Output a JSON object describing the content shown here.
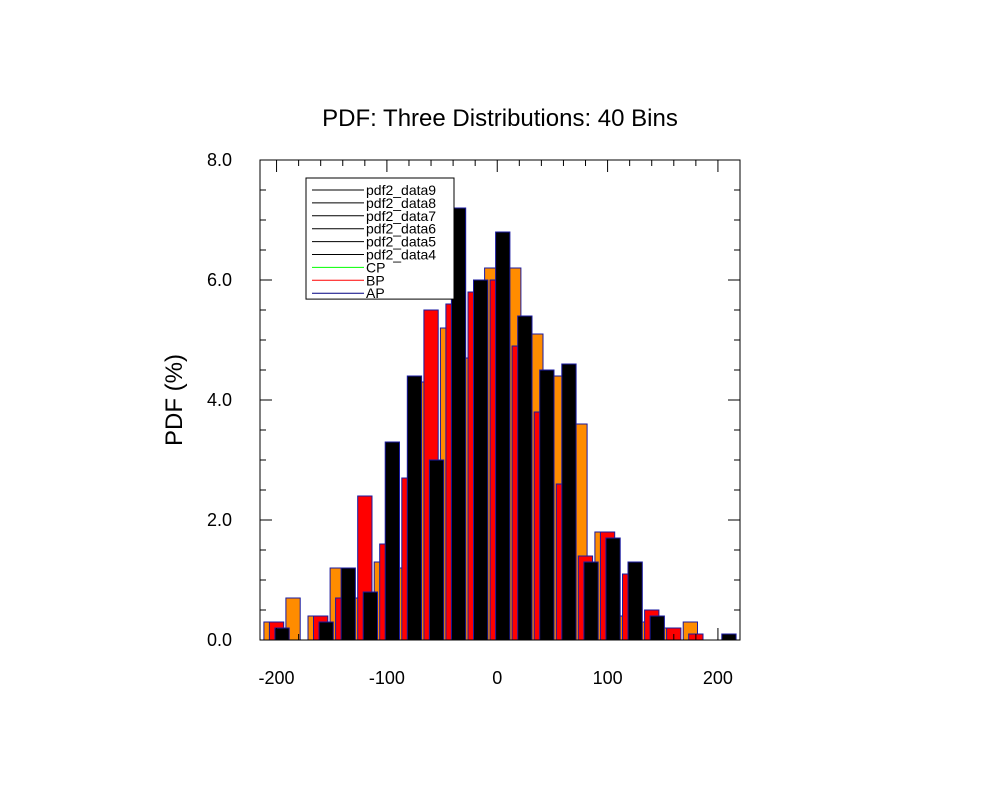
{
  "chart_data": {
    "type": "bar",
    "title": "PDF: Three Distributions: 40 Bins",
    "xlabel": "",
    "ylabel": "PDF (%)",
    "xlim": [
      -215,
      220
    ],
    "ylim": [
      0,
      8
    ],
    "x_ticks": [
      -200,
      -100,
      0,
      100,
      200
    ],
    "x_tick_labels": [
      "-200",
      "-100",
      "0",
      "100",
      "200"
    ],
    "y_ticks": [
      0,
      2,
      4,
      6,
      8
    ],
    "y_tick_labels": [
      "0.0",
      "2.0",
      "4.0",
      "6.0",
      "8.0"
    ],
    "grid": false,
    "legend_position": "top-left",
    "legend": [
      {
        "label": "pdf2_data9",
        "color": "#000000"
      },
      {
        "label": "pdf2_data8",
        "color": "#000000"
      },
      {
        "label": "pdf2_data7",
        "color": "#000000"
      },
      {
        "label": "pdf2_data6",
        "color": "#000000"
      },
      {
        "label": "pdf2_data5",
        "color": "#000000"
      },
      {
        "label": "pdf2_data4",
        "color": "#000000"
      },
      {
        "label": "CP",
        "color": "#00ff00"
      },
      {
        "label": "BP",
        "color": "#ff0000"
      },
      {
        "label": "AP",
        "color": "#000080"
      }
    ],
    "series": [
      {
        "name": "",
        "color": "#ff8c00",
        "x": [
          -205,
          -185,
          -165,
          -145,
          -125,
          -105,
          -85,
          -65,
          -45,
          -25,
          -5,
          15,
          35,
          55,
          75,
          95,
          115,
          135,
          155,
          175,
          195
        ],
        "values": [
          0.3,
          0.7,
          0.4,
          1.2,
          0.7,
          1.3,
          1.2,
          4.3,
          5.2,
          4.7,
          6.2,
          6.2,
          5.1,
          4.4,
          3.6,
          1.8,
          0.4,
          0.3,
          0.2,
          0.3,
          0.0
        ]
      },
      {
        "name": "",
        "color": "#ff0000",
        "x": [
          -200,
          -180,
          -160,
          -140,
          -120,
          -100,
          -80,
          -60,
          -40,
          -20,
          0,
          20,
          40,
          60,
          80,
          100,
          120,
          140,
          160,
          180
        ],
        "values": [
          0.3,
          0.0,
          0.4,
          0.7,
          2.4,
          1.6,
          2.7,
          5.5,
          5.6,
          5.8,
          6.0,
          4.9,
          3.8,
          2.6,
          1.4,
          1.8,
          1.1,
          0.5,
          0.2,
          0.1
        ]
      },
      {
        "name": "",
        "color": "#000000",
        "x": [
          -195,
          -175,
          -155,
          -135,
          -115,
          -95,
          -75,
          -55,
          -35,
          -15,
          5,
          25,
          45,
          65,
          85,
          105,
          125,
          145,
          165,
          185,
          210
        ],
        "values": [
          0.2,
          0.0,
          0.3,
          1.2,
          0.8,
          3.3,
          4.4,
          3.0,
          7.2,
          6.0,
          6.8,
          5.4,
          4.5,
          4.6,
          1.3,
          1.7,
          1.3,
          0.4,
          0.0,
          0.0,
          0.1
        ]
      }
    ]
  }
}
